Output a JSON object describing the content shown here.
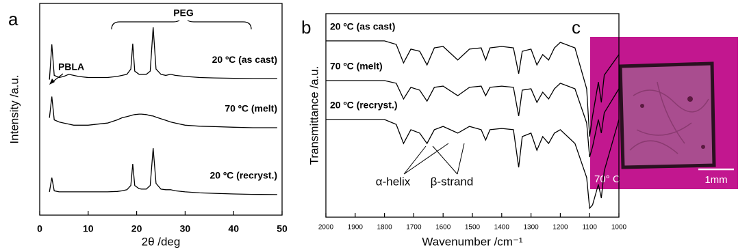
{
  "chart_data": [
    {
      "type": "line",
      "panel_label": "a",
      "x_label": "2θ /deg",
      "y_label": "Intensity /a.u.",
      "xlim": [
        0,
        50
      ],
      "xticks": [
        0,
        10,
        20,
        30,
        40,
        50
      ],
      "ylim": [
        0,
        100
      ],
      "annotations": [
        "PBLA",
        "PEG"
      ],
      "x": [
        2,
        2.5,
        3,
        4,
        5,
        6,
        7,
        8,
        10,
        12,
        14,
        16,
        17,
        18,
        18.8,
        19.2,
        19.6,
        20.5,
        21,
        22,
        22.8,
        23.4,
        24,
        25,
        26,
        27,
        28,
        30,
        33,
        36,
        40,
        44,
        49
      ],
      "series": [
        {
          "name": "20 ºC (as cast)",
          "color": "#000000",
          "values": [
            64,
            80.6,
            66,
            65,
            65.5,
            66.5,
            66,
            65.5,
            65,
            65,
            65,
            65.5,
            66,
            66.5,
            69,
            81,
            68,
            66.5,
            66.5,
            66.5,
            68,
            88.7,
            69,
            66.5,
            66,
            66.5,
            66,
            65.5,
            65,
            64.8,
            64.6,
            64.5,
            64.5
          ]
        },
        {
          "name": "70 ºC (melt)",
          "color": "#000000",
          "values": [
            46,
            56,
            45,
            44,
            43.5,
            43,
            42.5,
            42.5,
            42.5,
            43,
            43.5,
            45,
            46,
            46.5,
            47,
            47.3,
            47.5,
            47.7,
            47.7,
            47.5,
            47,
            46.8,
            46.3,
            45.5,
            44.8,
            44,
            43.5,
            42.5,
            42,
            41.8,
            41.5,
            41.3,
            41.3
          ]
        },
        {
          "name": "20 ºC (recryst.)",
          "color": "#000000",
          "values": [
            11,
            17.7,
            11.5,
            11,
            11,
            11,
            11,
            11,
            11,
            11,
            11,
            11.2,
            11.5,
            12,
            14,
            24.2,
            14,
            12.5,
            12.3,
            12.3,
            14,
            31.6,
            15,
            12.3,
            12,
            12,
            11.5,
            11,
            10.5,
            10.3,
            10,
            9.8,
            9.7
          ]
        }
      ]
    },
    {
      "type": "line",
      "panel_label": "b",
      "x_label": "Wavenumber /cm⁻¹",
      "y_label": "Transmittance /a.u.",
      "xlim": [
        2000,
        1000
      ],
      "xticks": [
        2000,
        1900,
        1800,
        1700,
        1600,
        1500,
        1400,
        1300,
        1200,
        1100,
        1000
      ],
      "ylim": [
        0,
        100
      ],
      "annotations": [
        "α-helix",
        "β-strand"
      ],
      "x": [
        2000,
        1800,
        1760,
        1735,
        1710,
        1680,
        1655,
        1630,
        1600,
        1550,
        1510,
        1470,
        1455,
        1440,
        1400,
        1360,
        1342,
        1330,
        1300,
        1280,
        1260,
        1240,
        1220,
        1200,
        1150,
        1110,
        1100,
        1090,
        1070,
        1060,
        1050,
        1000
      ],
      "series": [
        {
          "name": "20 ºC (as cast)",
          "color": "#000000",
          "values": [
            86.6,
            86.6,
            84.9,
            75.8,
            82.6,
            81.5,
            74.8,
            83.2,
            83.9,
            77.2,
            82.6,
            83.2,
            77.2,
            83.2,
            83.9,
            83.2,
            70.5,
            81.5,
            82.6,
            74.8,
            79.9,
            77.2,
            83.2,
            85.9,
            83.2,
            63.1,
            39.6,
            49.7,
            66.4,
            56.4,
            69.8,
            79.9
          ]
        },
        {
          "name": "70 ºC (melt)",
          "color": "#000000",
          "values": [
            67.1,
            67.1,
            65.8,
            58.1,
            63.8,
            62.4,
            57.0,
            63.8,
            64.4,
            59.7,
            63.8,
            64.4,
            59.7,
            63.8,
            64.4,
            63.8,
            49.7,
            62.4,
            63.1,
            56.4,
            61.4,
            58.1,
            63.1,
            65.8,
            63.1,
            46.3,
            29.5,
            34.6,
            48.0,
            41.3,
            51.3,
            63.1
          ]
        },
        {
          "name": "20 ºC (recryst.)",
          "color": "#000000",
          "values": [
            48.0,
            48.0,
            45.6,
            36.2,
            43.0,
            41.3,
            36.2,
            43.0,
            44.6,
            41.3,
            44.6,
            43.0,
            37.9,
            43.0,
            43.6,
            43.0,
            24.5,
            39.6,
            41.3,
            32.9,
            39.6,
            36.2,
            41.3,
            43.0,
            36.2,
            19.5,
            4.4,
            6.0,
            16.1,
            9.4,
            22.8,
            48.0
          ]
        }
      ]
    }
  ],
  "panel_c": {
    "panel_label": "c",
    "temperature_label": "70° C",
    "scale_bar_label": "1mm"
  }
}
